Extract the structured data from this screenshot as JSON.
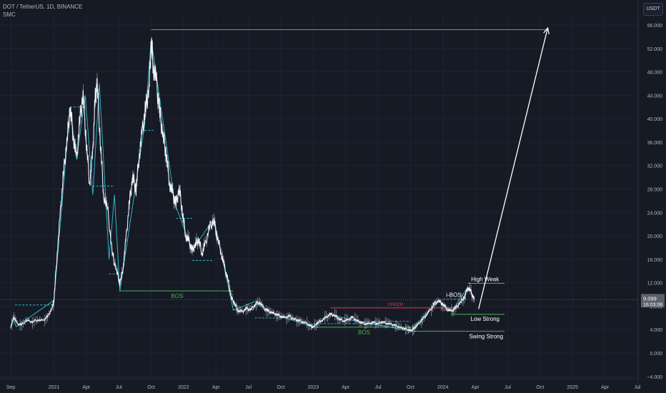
{
  "header": {
    "symbol_line": "DOT / TetherUS, 1D, BINANCE",
    "indicator": "SMC"
  },
  "toolbar": {
    "currency_button": "USDT"
  },
  "price_tag": {
    "price": "9.099",
    "countdown": "16:03:06"
  },
  "colors": {
    "background": "#161a25",
    "price_line": "#f0f3fa",
    "structure_line": "#2fb4c4",
    "bullish_level": "#4caf50",
    "bearish_level": "#f23645",
    "projection_arrow": "#ffffff"
  },
  "annotations": {
    "bos_upper": "BOS",
    "bos_lower": "BOS",
    "choch": "CHOCH",
    "i_bos": "i-BOS",
    "high_weak": "High Weak",
    "low_strong": "Low Strong",
    "swing_strong": "Swing Strong"
  },
  "chart_data": {
    "type": "line",
    "ylim": [
      -4,
      58
    ],
    "y_ticks": [
      "56.000",
      "52.000",
      "48.000",
      "44.000",
      "40.000",
      "36.000",
      "32.000",
      "28.000",
      "24.000",
      "20.000",
      "16.000",
      "12.000",
      "8.000",
      "4.000",
      "0.000",
      "−4.000"
    ],
    "y_tick_values": [
      56,
      52,
      48,
      44,
      40,
      36,
      32,
      28,
      24,
      20,
      16,
      12,
      8,
      4,
      0,
      -4
    ],
    "x_ticks": [
      "Sep",
      "2021",
      "Apr",
      "Jul",
      "Oct",
      "2022",
      "Apr",
      "Jul",
      "Oct",
      "2023",
      "Apr",
      "Jul",
      "Oct",
      "2024",
      "Apr",
      "Jul",
      "Oct",
      "2025",
      "Apr",
      "Jul"
    ],
    "x_tick_months": [
      0,
      4,
      7,
      10,
      13,
      16,
      19,
      22,
      25,
      28,
      31,
      34,
      37,
      40,
      43,
      46,
      49,
      52,
      55,
      58
    ],
    "series": [
      {
        "values_by_month": [
          [
            0,
            4.5
          ],
          [
            0.3,
            6.2
          ],
          [
            0.6,
            5.0
          ],
          [
            1,
            4.8
          ],
          [
            1.5,
            5.6
          ],
          [
            2,
            5.3
          ],
          [
            2.5,
            5.7
          ],
          [
            3,
            5.5
          ],
          [
            3.4,
            6.2
          ],
          [
            3.8,
            7.5
          ],
          [
            4,
            9.0
          ],
          [
            4.3,
            17.0
          ],
          [
            4.6,
            24.0
          ],
          [
            4.9,
            31.0
          ],
          [
            5.2,
            36.0
          ],
          [
            5.5,
            42.0
          ],
          [
            5.8,
            37.0
          ],
          [
            6.1,
            33.0
          ],
          [
            6.4,
            40.0
          ],
          [
            6.7,
            44.0
          ],
          [
            7.0,
            36.0
          ],
          [
            7.3,
            29.0
          ],
          [
            7.6,
            34.0
          ],
          [
            7.8,
            43.0
          ],
          [
            8.0,
            46.0
          ],
          [
            8.3,
            36.0
          ],
          [
            8.6,
            27.0
          ],
          [
            9.0,
            24.0
          ],
          [
            9.4,
            17.0
          ],
          [
            9.8,
            14.0
          ],
          [
            10.1,
            12.0
          ],
          [
            10.4,
            14.5
          ],
          [
            10.7,
            20.0
          ],
          [
            11.0,
            26.0
          ],
          [
            11.3,
            30.0
          ],
          [
            11.6,
            28.0
          ],
          [
            11.9,
            34.0
          ],
          [
            12.2,
            38.0
          ],
          [
            12.5,
            42.0
          ],
          [
            12.8,
            45.0
          ],
          [
            13.0,
            53.5
          ],
          [
            13.2,
            49.0
          ],
          [
            13.5,
            46.0
          ],
          [
            13.8,
            41.0
          ],
          [
            14.1,
            37.0
          ],
          [
            14.4,
            34.0
          ],
          [
            14.7,
            29.0
          ],
          [
            15.0,
            27.0
          ],
          [
            15.3,
            25.5
          ],
          [
            15.6,
            28.0
          ],
          [
            15.9,
            24.0
          ],
          [
            16.2,
            20.0
          ],
          [
            16.5,
            19.0
          ],
          [
            16.8,
            17.5
          ],
          [
            17.1,
            18.5
          ],
          [
            17.4,
            19.5
          ],
          [
            17.7,
            17.0
          ],
          [
            18.0,
            18.5
          ],
          [
            18.4,
            21.5
          ],
          [
            18.8,
            22.5
          ],
          [
            19.1,
            20.0
          ],
          [
            19.5,
            17.0
          ],
          [
            19.8,
            14.5
          ],
          [
            20.1,
            12.5
          ],
          [
            20.4,
            9.5
          ],
          [
            20.7,
            8.6
          ],
          [
            21.0,
            7.3
          ],
          [
            21.4,
            7.0
          ],
          [
            21.8,
            7.6
          ],
          [
            22.2,
            7.4
          ],
          [
            22.6,
            8.2
          ],
          [
            23.0,
            8.8
          ],
          [
            23.4,
            7.7
          ],
          [
            23.8,
            7.2
          ],
          [
            24.2,
            6.9
          ],
          [
            24.6,
            6.6
          ],
          [
            25.0,
            6.3
          ],
          [
            25.4,
            6.0
          ],
          [
            25.8,
            6.3
          ],
          [
            26.2,
            5.8
          ],
          [
            26.6,
            5.6
          ],
          [
            27.0,
            5.4
          ],
          [
            27.4,
            5.0
          ],
          [
            27.8,
            4.6
          ],
          [
            28.0,
            4.4
          ],
          [
            28.4,
            5.2
          ],
          [
            28.8,
            5.6
          ],
          [
            29.2,
            6.1
          ],
          [
            29.6,
            6.6
          ],
          [
            30.0,
            6.4
          ],
          [
            30.4,
            5.8
          ],
          [
            30.8,
            5.5
          ],
          [
            31.2,
            5.6
          ],
          [
            31.6,
            6.1
          ],
          [
            32.0,
            5.6
          ],
          [
            32.4,
            5.2
          ],
          [
            32.8,
            5.0
          ],
          [
            33.2,
            5.0
          ],
          [
            33.6,
            5.2
          ],
          [
            34.0,
            5.0
          ],
          [
            34.4,
            5.3
          ],
          [
            34.8,
            5.1
          ],
          [
            35.2,
            4.9
          ],
          [
            35.6,
            4.7
          ],
          [
            36.0,
            4.4
          ],
          [
            36.4,
            4.2
          ],
          [
            36.8,
            4.0
          ],
          [
            37.0,
            3.8
          ],
          [
            37.3,
            4.1
          ],
          [
            37.6,
            4.7
          ],
          [
            38.0,
            5.5
          ],
          [
            38.4,
            6.4
          ],
          [
            38.8,
            7.2
          ],
          [
            39.2,
            8.4
          ],
          [
            39.6,
            8.9
          ],
          [
            40.0,
            8.3
          ],
          [
            40.4,
            7.5
          ],
          [
            40.8,
            7.1
          ],
          [
            41.2,
            7.7
          ],
          [
            41.6,
            8.6
          ],
          [
            42.0,
            9.6
          ],
          [
            42.3,
            11.2
          ],
          [
            42.6,
            10.4
          ],
          [
            42.9,
            9.1
          ]
        ]
      }
    ],
    "structure_zigzag": [
      [
        0.2,
        6.0
      ],
      [
        0.5,
        4.5
      ],
      [
        4.0,
        9.0
      ],
      [
        5.5,
        42.0
      ],
      [
        6.1,
        33.0
      ],
      [
        6.9,
        44.0
      ],
      [
        7.6,
        27.0
      ],
      [
        8.2,
        46.0
      ],
      [
        9.1,
        16.0
      ],
      [
        9.6,
        27.0
      ],
      [
        10.1,
        10.5
      ],
      [
        12.4,
        39.0
      ],
      [
        13.0,
        53.5
      ],
      [
        15.2,
        25.5
      ],
      [
        16.8,
        17.5
      ],
      [
        18.8,
        23.0
      ],
      [
        20.6,
        7.3
      ],
      [
        22.6,
        8.8
      ],
      [
        23.6,
        7.2
      ],
      [
        28.0,
        4.4
      ],
      [
        29.6,
        6.6
      ],
      [
        32.0,
        5.4
      ],
      [
        37.0,
        3.8
      ],
      [
        39.6,
        8.9
      ],
      [
        40.8,
        7.1
      ],
      [
        42.3,
        11.2
      ]
    ],
    "levels": [
      {
        "kind": "dashed",
        "y": 8.2,
        "x0": 0.4,
        "x1": 3.9
      },
      {
        "kind": "dashed",
        "y": 42.0,
        "x0": 5.5,
        "x1": 6.9
      },
      {
        "kind": "dashed",
        "y": 28.5,
        "x0": 7.6,
        "x1": 9.6
      },
      {
        "kind": "dashed",
        "y": 13.5,
        "x0": 9.1,
        "x1": 10.1
      },
      {
        "kind": "dashed",
        "y": 38.0,
        "x0": 12.4,
        "x1": 13.2
      },
      {
        "kind": "dashed",
        "y": 23.0,
        "x0": 15.3,
        "x1": 16.8
      },
      {
        "kind": "dashed",
        "y": 15.8,
        "x0": 16.8,
        "x1": 18.8
      },
      {
        "kind": "dashed",
        "y": 7.4,
        "x0": 20.6,
        "x1": 22.6
      },
      {
        "kind": "dashed",
        "y": 6.0,
        "x0": 22.6,
        "x1": 25.5
      },
      {
        "kind": "dashed",
        "y": 5.0,
        "x0": 28.0,
        "x1": 32.0
      },
      {
        "kind": "dashed",
        "y": 5.4,
        "x0": 32.0,
        "x1": 37.0
      },
      {
        "kind": "dashed",
        "y": 9.2,
        "x0": 40.0,
        "x1": 42.3
      },
      {
        "kind": "solid",
        "color": "#4caf50",
        "y": 55.2,
        "x0": 13.0,
        "x1": 49.5
      },
      {
        "kind": "solid",
        "color": "#4caf50",
        "y": 10.6,
        "x0": 10.1,
        "x1": 20.6
      },
      {
        "kind": "solid",
        "color": "#f23645",
        "y": 7.7,
        "x0": 29.6,
        "x1": 41.6
      },
      {
        "kind": "solid",
        "color": "#4caf50",
        "y": 4.4,
        "x0": 28.0,
        "x1": 37.5
      },
      {
        "kind": "solid",
        "color": "#4caf50",
        "y": 11.9,
        "x0": 42.3,
        "x1": 45.7
      },
      {
        "kind": "solid",
        "color": "#4caf50",
        "y": 6.6,
        "x0": 40.8,
        "x1": 45.7
      },
      {
        "kind": "solid",
        "color": "#4caf50",
        "y": 3.7,
        "x0": 37.0,
        "x1": 45.7
      }
    ],
    "current_price": 9.099,
    "projection": {
      "from": [
        43.3,
        7.5
      ],
      "to": [
        49.7,
        55.5
      ]
    }
  }
}
